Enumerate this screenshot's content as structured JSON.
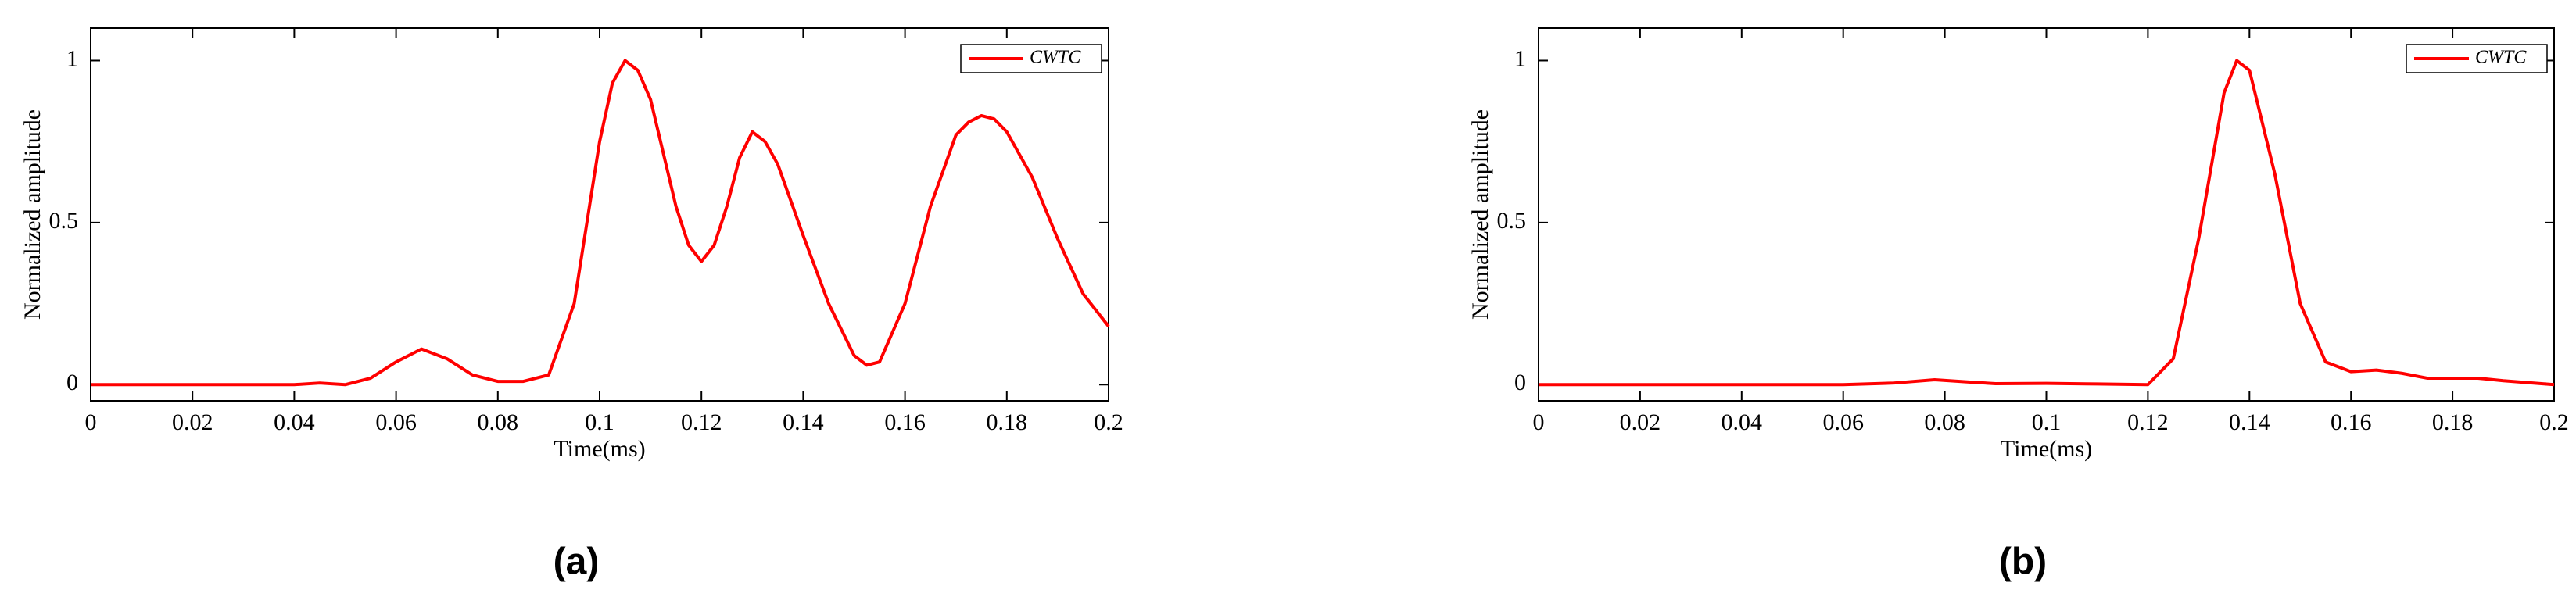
{
  "chart_data": [
    {
      "type": "line",
      "caption": "(a)",
      "xlabel": "Time(ms)",
      "ylabel": "Normalized amplitude",
      "x": [
        0,
        0.005,
        0.01,
        0.015,
        0.02,
        0.025,
        0.03,
        0.035,
        0.04,
        0.045,
        0.05,
        0.055,
        0.06,
        0.065,
        0.07,
        0.075,
        0.08,
        0.085,
        0.09,
        0.095,
        0.1,
        0.1025,
        0.105,
        0.1075,
        0.11,
        0.115,
        0.1175,
        0.12,
        0.1225,
        0.125,
        0.1275,
        0.13,
        0.1325,
        0.135,
        0.14,
        0.145,
        0.15,
        0.1525,
        0.155,
        0.16,
        0.165,
        0.17,
        0.1725,
        0.175,
        0.1775,
        0.18,
        0.185,
        0.19,
        0.195,
        0.2
      ],
      "series": [
        {
          "name": "CWTC",
          "color": "#ff0000",
          "values": [
            0,
            0,
            0,
            0,
            0,
            0,
            0,
            0,
            0,
            0.005,
            0,
            0.02,
            0.07,
            0.11,
            0.08,
            0.03,
            0.01,
            0.01,
            0.03,
            0.25,
            0.75,
            0.93,
            1.0,
            0.97,
            0.88,
            0.55,
            0.43,
            0.38,
            0.43,
            0.55,
            0.7,
            0.78,
            0.75,
            0.68,
            0.46,
            0.25,
            0.09,
            0.06,
            0.07,
            0.25,
            0.55,
            0.77,
            0.81,
            0.83,
            0.82,
            0.78,
            0.64,
            0.45,
            0.28,
            0.18
          ]
        }
      ],
      "xlim": [
        0,
        0.2
      ],
      "xticks": [
        0,
        0.02,
        0.04,
        0.06,
        0.08,
        0.1,
        0.12,
        0.14,
        0.16,
        0.18,
        0.2
      ],
      "ylim": [
        -0.05,
        1.1
      ],
      "yticks": [
        0,
        0.5,
        1
      ],
      "legend": "upper-right"
    },
    {
      "type": "line",
      "caption": "(b)",
      "xlabel": "Time(ms)",
      "ylabel": "Normalized amplitude",
      "x": [
        0,
        0.01,
        0.02,
        0.03,
        0.04,
        0.05,
        0.06,
        0.07,
        0.078,
        0.085,
        0.09,
        0.1,
        0.11,
        0.12,
        0.125,
        0.13,
        0.135,
        0.1375,
        0.14,
        0.145,
        0.15,
        0.155,
        0.16,
        0.165,
        0.17,
        0.175,
        0.18,
        0.185,
        0.19,
        0.2
      ],
      "series": [
        {
          "name": "CWTC",
          "color": "#ff0000",
          "values": [
            0,
            0,
            0,
            0,
            0,
            0,
            0,
            0.005,
            0.015,
            0.008,
            0.003,
            0.004,
            0.002,
            0,
            0.08,
            0.45,
            0.9,
            1.0,
            0.97,
            0.65,
            0.25,
            0.07,
            0.04,
            0.045,
            0.035,
            0.02,
            0.02,
            0.02,
            0.012,
            0
          ]
        }
      ],
      "xlim": [
        0,
        0.2
      ],
      "xticks": [
        0,
        0.02,
        0.04,
        0.06,
        0.08,
        0.1,
        0.12,
        0.14,
        0.16,
        0.18,
        0.2
      ],
      "ylim": [
        -0.05,
        1.1
      ],
      "yticks": [
        0,
        0.5,
        1
      ],
      "legend": "upper-right"
    }
  ]
}
